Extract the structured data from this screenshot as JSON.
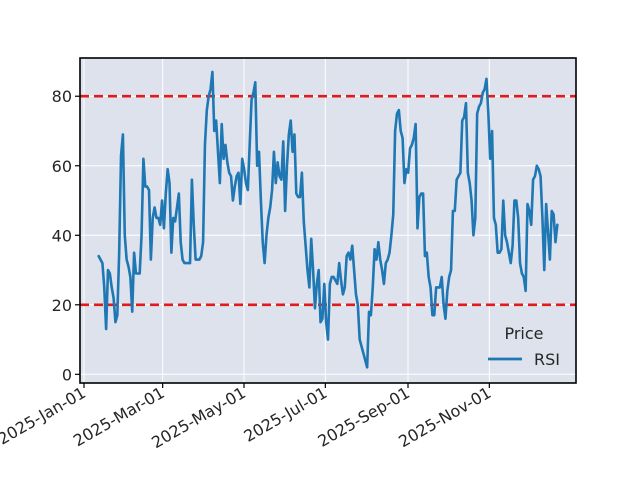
{
  "chart_data": {
    "type": "line",
    "title": "",
    "xlabel": "",
    "ylabel": "",
    "x_start": "2025-01-12",
    "x_end": "2025-12-22",
    "xlim": [
      "2024-12-29",
      "2026-01-05"
    ],
    "ylim": [
      -2.5,
      91
    ],
    "x_ticks": [
      {
        "date": "2025-01-01",
        "label": "2025-Jan-01"
      },
      {
        "date": "2025-03-01",
        "label": "2025-Mar-01"
      },
      {
        "date": "2025-05-01",
        "label": "2025-May-01"
      },
      {
        "date": "2025-07-01",
        "label": "2025-Jul-01"
      },
      {
        "date": "2025-09-01",
        "label": "2025-Sep-01"
      },
      {
        "date": "2025-11-01",
        "label": "2025-Nov-01"
      }
    ],
    "y_ticks": [
      {
        "value": 0,
        "label": "0"
      },
      {
        "value": 20,
        "label": "20"
      },
      {
        "value": 40,
        "label": "40"
      },
      {
        "value": 60,
        "label": "60"
      },
      {
        "value": 80,
        "label": "80"
      }
    ],
    "reference_lines": [
      {
        "value": 80,
        "color": "#e31a1c",
        "style": "dashed"
      },
      {
        "value": 20,
        "color": "#e31a1c",
        "style": "dashed"
      }
    ],
    "grid": true,
    "legend": {
      "title": "Price",
      "position": "lower-right"
    },
    "series": [
      {
        "name": "RSI",
        "color": "#1f77b4",
        "values": [
          34,
          33,
          32,
          25,
          13,
          30,
          29,
          25,
          22,
          15,
          17,
          35,
          63,
          69,
          40,
          33,
          31,
          28,
          18,
          35,
          29,
          29,
          29,
          40,
          62,
          54,
          54,
          53,
          33,
          45,
          48,
          45,
          45,
          43,
          50,
          42,
          52,
          59,
          55,
          35,
          45,
          44,
          48,
          52,
          38,
          33,
          32,
          32,
          32,
          32,
          56,
          43,
          33,
          33,
          33,
          34,
          38,
          66,
          76,
          80,
          82,
          87,
          70,
          73,
          64,
          55,
          72,
          62,
          66,
          61,
          58,
          57,
          50,
          54,
          57,
          58,
          49,
          62,
          59,
          55,
          53,
          66,
          79,
          81,
          84,
          60,
          64,
          50,
          38,
          32,
          40,
          45,
          48,
          53,
          64,
          55,
          61,
          57,
          56,
          67,
          47,
          60,
          69,
          73,
          64,
          69,
          52,
          51,
          51,
          58,
          44,
          37,
          30,
          25,
          39,
          30,
          19,
          26,
          30,
          15,
          16,
          26,
          15,
          10,
          26,
          28,
          28,
          27,
          26,
          32,
          27,
          23,
          25,
          34,
          35,
          33,
          37,
          30,
          23,
          20,
          10,
          8,
          6,
          4,
          2,
          18,
          17,
          25,
          36,
          33,
          38,
          33,
          30,
          26,
          32,
          33,
          35,
          40,
          46,
          70,
          75,
          76,
          70,
          68,
          55,
          59,
          58,
          65,
          66,
          68,
          72,
          42,
          51,
          52,
          52,
          34,
          35,
          28,
          25,
          17,
          17,
          25,
          25,
          25,
          28,
          20,
          16,
          24,
          28,
          30,
          47,
          47,
          56,
          57,
          58,
          73,
          74,
          78,
          58,
          55,
          50,
          40,
          45,
          75,
          77,
          78,
          81,
          82,
          85,
          75,
          62,
          70,
          45,
          43,
          35,
          35,
          36,
          50,
          40,
          38,
          35,
          32,
          37,
          50,
          50,
          45,
          32,
          29,
          28,
          24,
          49,
          47,
          43,
          56,
          57,
          60,
          59,
          57,
          45,
          30,
          49,
          41,
          33,
          47,
          46,
          38,
          43
        ]
      }
    ]
  }
}
